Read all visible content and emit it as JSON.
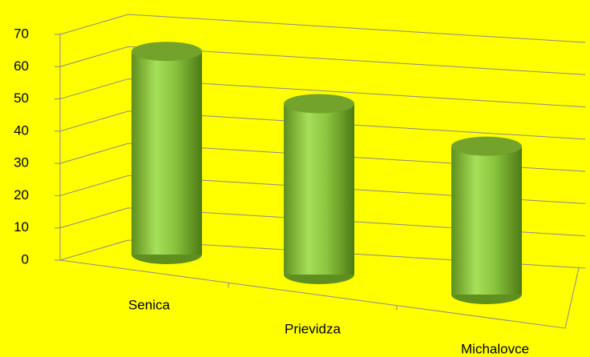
{
  "chart_data": {
    "type": "bar3d",
    "categories": [
      "Senica",
      "Prievidza",
      "Michalovce"
    ],
    "values": [
      63,
      53,
      46
    ],
    "color": "#8cc63f",
    "ylim": [
      0,
      70
    ],
    "yticks": [
      0,
      10,
      20,
      30,
      40,
      50,
      60,
      70
    ],
    "grid": true
  }
}
